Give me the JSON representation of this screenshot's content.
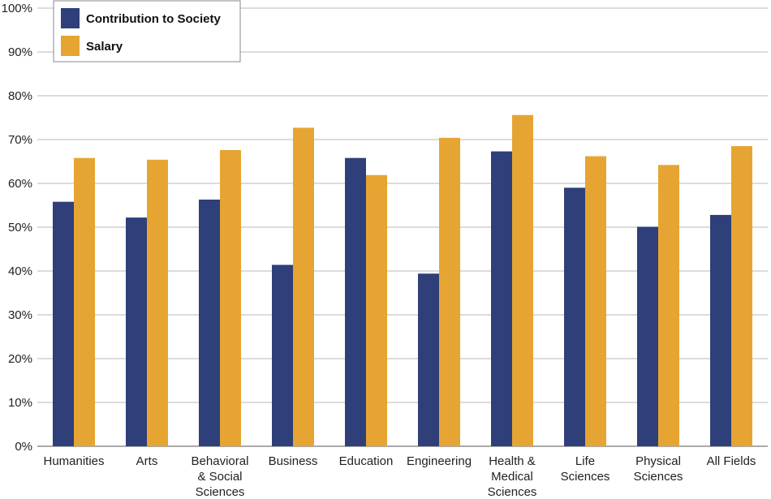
{
  "chart_data": {
    "type": "bar",
    "categories": [
      [
        "Humanities"
      ],
      [
        "Arts"
      ],
      [
        "Behavioral",
        "& Social",
        "Sciences"
      ],
      [
        "Business"
      ],
      [
        "Education"
      ],
      [
        "Engineering"
      ],
      [
        "Health &",
        "Medical",
        "Sciences"
      ],
      [
        "Life",
        "Sciences"
      ],
      [
        "Physical",
        "Sciences"
      ],
      [
        "All Fields"
      ]
    ],
    "series": [
      {
        "name": "Contribution to Society",
        "color": "#2e3f7a",
        "values": [
          55.8,
          52.2,
          56.3,
          41.4,
          65.8,
          39.4,
          67.3,
          59.0,
          50.1,
          52.8
        ]
      },
      {
        "name": "Salary",
        "color": "#e6a532",
        "values": [
          65.8,
          65.4,
          67.6,
          72.7,
          61.9,
          70.4,
          75.6,
          66.2,
          64.2,
          68.5
        ]
      }
    ],
    "ylim": [
      0,
      100
    ],
    "yticks": [
      "0%",
      "10%",
      "20%",
      "30%",
      "40%",
      "50%",
      "60%",
      "70%",
      "80%",
      "90%",
      "100%"
    ],
    "grid": true,
    "legend": "top-left",
    "gridColor": "#b8b8b8",
    "axisColor": "#555555"
  }
}
